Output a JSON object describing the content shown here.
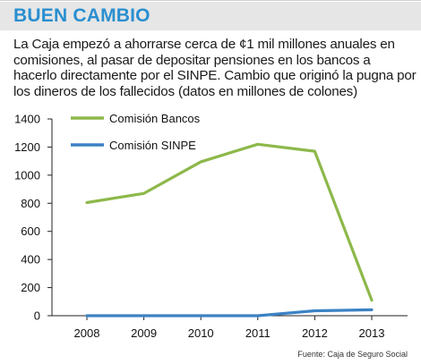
{
  "header": {
    "title": "BUEN CAMBIO"
  },
  "description": "La Caja empezó a ahorrarse cerca de ¢1 mil millones anuales en comisiones, al pasar de depositar pensiones en los bancos a hacerlo directamente por el SINPE. Cambio que originó la pugna por los dineros de los fallecidos (datos en millones de colones)",
  "source": "Fuente: Caja de Seguro Social",
  "colors": {
    "title": "#2a8fd0",
    "header_band": "#e6e6e6"
  },
  "chart_data": {
    "type": "line",
    "categories": [
      "2008",
      "2009",
      "2010",
      "2011",
      "2012",
      "2013"
    ],
    "series": [
      {
        "name": "Comisión Bancos",
        "color": "#8db84a",
        "values": [
          805,
          870,
          1095,
          1220,
          1170,
          110
        ]
      },
      {
        "name": "Comisión SINPE",
        "color": "#3b82c4",
        "values": [
          0,
          0,
          0,
          0,
          35,
          42
        ]
      }
    ],
    "title": "",
    "xlabel": "",
    "ylabel": "",
    "ylim": [
      0,
      1400
    ],
    "yticks": [
      0,
      200,
      400,
      600,
      800,
      1000,
      1200,
      1400
    ],
    "grid": false,
    "legend_position": "top-left"
  }
}
